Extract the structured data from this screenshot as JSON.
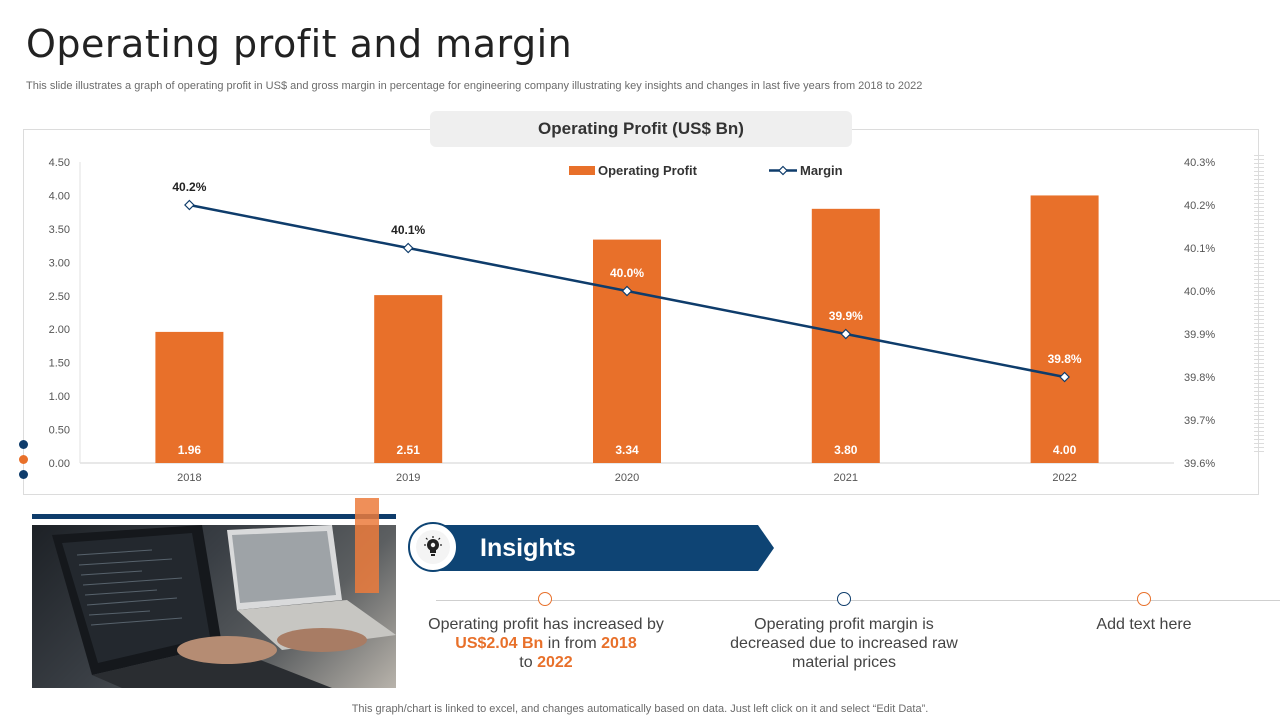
{
  "page": {
    "title": "Operating profit and margin",
    "subtitle": "This slide illustrates a graph of operating profit in US$ and gross margin in percentage for engineering company illustrating key insights and changes in last five years from 2018 to 2022",
    "footer": "This graph/chart is linked to excel,  and changes automatically based on data. Just left click on it and select “Edit Data”."
  },
  "chart_data": {
    "type": "bar",
    "title": "Operating Profit (US$ Bn)",
    "categories": [
      "2018",
      "2019",
      "2020",
      "2021",
      "2022"
    ],
    "series": [
      {
        "name": "Operating Profit",
        "type": "bar",
        "axis": "left",
        "values": [
          1.96,
          2.51,
          3.34,
          3.8,
          4.0
        ],
        "labels": [
          "1.96",
          "2.51",
          "3.34",
          "3.80",
          "4.00"
        ],
        "color": "#e8702a"
      },
      {
        "name": "Margin",
        "type": "line",
        "axis": "right",
        "values": [
          40.2,
          40.1,
          40.0,
          39.9,
          39.8
        ],
        "labels": [
          "40.2%",
          "40.1%",
          "40.0%",
          "39.9%",
          "39.8%"
        ],
        "color": "#0e3c6b"
      }
    ],
    "y_left": {
      "min": 0,
      "max": 4.5,
      "ticks": [
        "0.00",
        "0.50",
        "1.00",
        "1.50",
        "2.00",
        "2.50",
        "3.00",
        "3.50",
        "4.00",
        "4.50"
      ]
    },
    "y_right": {
      "min": 39.6,
      "max": 40.3,
      "ticks": [
        "39.6%",
        "39.7%",
        "39.8%",
        "39.9%",
        "40.0%",
        "40.1%",
        "40.2%",
        "40.3%"
      ]
    },
    "legend_position": "top",
    "grid": false
  },
  "insights": {
    "label": "Insights",
    "items": [
      {
        "parts": [
          "Operating profit has increased by ",
          "US$2.04 Bn",
          " in from ",
          "2018",
          " to ",
          "2022"
        ]
      },
      {
        "text": "Operating profit margin is decreased due to increased raw material prices"
      },
      {
        "text": "Add text here"
      }
    ]
  },
  "colors": {
    "accent": "#e8702a",
    "navy": "#0e3c6b"
  },
  "icons": {
    "insights": "bulb-gear-icon"
  }
}
